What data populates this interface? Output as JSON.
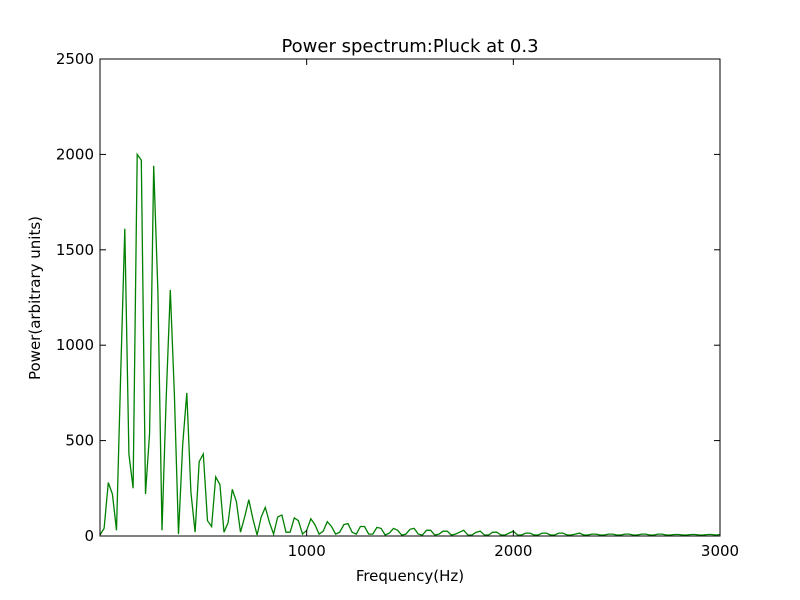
{
  "chart_data": {
    "type": "line",
    "title": "Power spectrum:Pluck at 0.3",
    "xlabel": "Frequency(Hz)",
    "ylabel": "Power(arbitrary units)",
    "xlim": [
      0,
      3000
    ],
    "ylim": [
      0,
      2500
    ],
    "xticks": [
      1000,
      2000,
      3000
    ],
    "xtick_labels": [
      "1000",
      "2000",
      "3000"
    ],
    "yticks": [
      0,
      500,
      1000,
      1500,
      2000,
      2500
    ],
    "ytick_labels": [
      "0",
      "500",
      "1000",
      "1500",
      "2000",
      "2500"
    ],
    "grid": false,
    "legend": "none",
    "series": [
      {
        "color": "#008000",
        "x": [
          0,
          20,
          40,
          60,
          80,
          100,
          120,
          140,
          160,
          180,
          200,
          220,
          240,
          260,
          280,
          300,
          320,
          340,
          360,
          380,
          400,
          420,
          440,
          460,
          480,
          500,
          520,
          540,
          560,
          580,
          600,
          620,
          640,
          660,
          680,
          700,
          720,
          740,
          760,
          780,
          800,
          820,
          840,
          860,
          880,
          900,
          920,
          940,
          960,
          980,
          1000,
          1020,
          1040,
          1060,
          1080,
          1100,
          1120,
          1140,
          1160,
          1180,
          1200,
          1220,
          1240,
          1260,
          1280,
          1300,
          1320,
          1340,
          1360,
          1380,
          1400,
          1420,
          1440,
          1460,
          1480,
          1500,
          1520,
          1540,
          1560,
          1580,
          1600,
          1620,
          1640,
          1660,
          1680,
          1700,
          1720,
          1740,
          1760,
          1780,
          1800,
          1820,
          1840,
          1860,
          1880,
          1900,
          1920,
          1940,
          1960,
          1980,
          2000,
          2020,
          2040,
          2060,
          2080,
          2100,
          2120,
          2140,
          2160,
          2180,
          2200,
          2220,
          2240,
          2260,
          2280,
          2300,
          2320,
          2340,
          2360,
          2380,
          2400,
          2420,
          2440,
          2460,
          2480,
          2500,
          2520,
          2540,
          2560,
          2580,
          2600,
          2620,
          2640,
          2660,
          2680,
          2700,
          2720,
          2740,
          2760,
          2780,
          2800,
          2820,
          2840,
          2860,
          2880,
          2900,
          2920,
          2940,
          2960,
          2980,
          3000
        ],
        "y": [
          5,
          40,
          280,
          220,
          30,
          850,
          1610,
          430,
          250,
          2000,
          1970,
          220,
          540,
          1940,
          1280,
          30,
          710,
          1290,
          740,
          10,
          480,
          750,
          230,
          20,
          390,
          430,
          80,
          50,
          310,
          270,
          20,
          70,
          245,
          180,
          20,
          100,
          190,
          90,
          5,
          100,
          150,
          70,
          10,
          100,
          110,
          20,
          20,
          95,
          80,
          10,
          30,
          90,
          60,
          10,
          25,
          75,
          50,
          10,
          20,
          60,
          65,
          20,
          10,
          50,
          50,
          10,
          10,
          45,
          40,
          5,
          15,
          40,
          30,
          5,
          10,
          35,
          40,
          10,
          5,
          30,
          30,
          5,
          10,
          25,
          25,
          5,
          10,
          20,
          30,
          5,
          5,
          20,
          25,
          5,
          5,
          20,
          20,
          5,
          5,
          15,
          25,
          5,
          5,
          15,
          15,
          5,
          5,
          15,
          15,
          5,
          5,
          15,
          15,
          5,
          5,
          10,
          15,
          5,
          5,
          10,
          10,
          5,
          5,
          10,
          10,
          5,
          5,
          10,
          10,
          5,
          5,
          10,
          10,
          5,
          5,
          10,
          10,
          5,
          5,
          8,
          8,
          5,
          5,
          8,
          8,
          5,
          5,
          8,
          8,
          5,
          8
        ]
      }
    ]
  }
}
